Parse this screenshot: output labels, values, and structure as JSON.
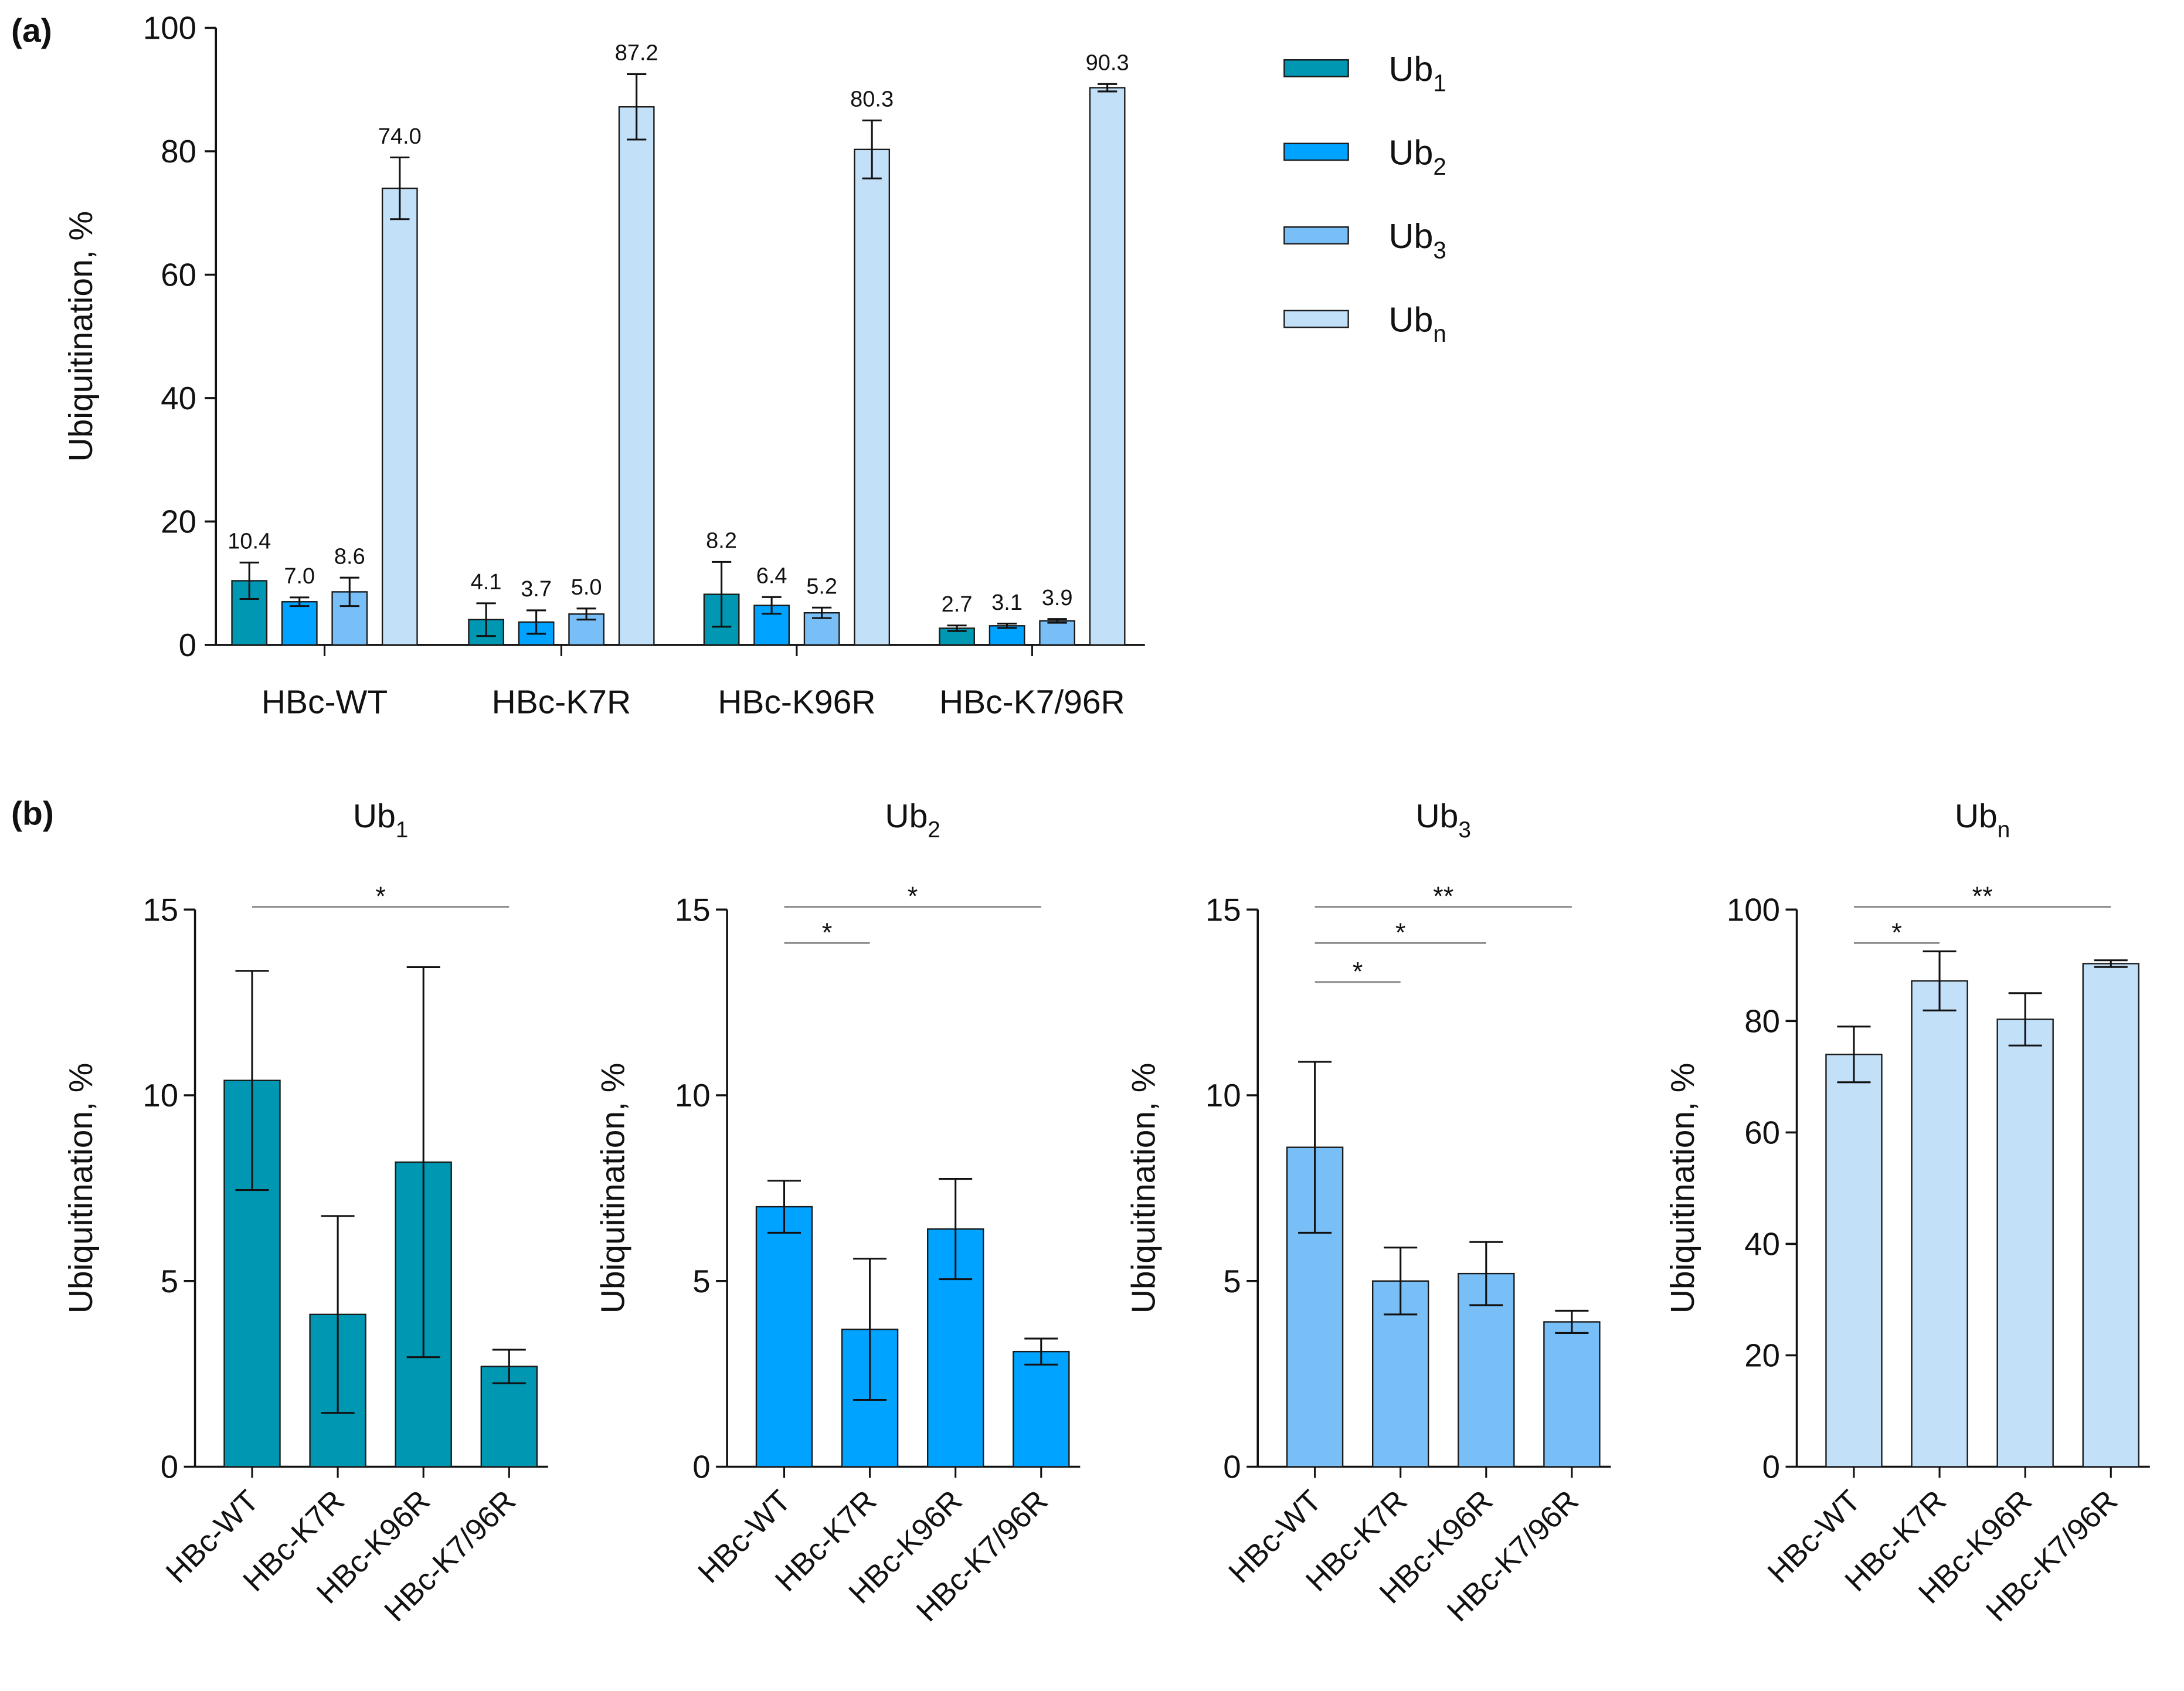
{
  "panel_labels": {
    "a": "(a)",
    "b": "(b)"
  },
  "colors": {
    "Ub1": "#0097b2",
    "Ub2": "#00a3ff",
    "Ub3": "#78bef7",
    "Ubn": "#c3e0f9",
    "stroke": "#1a1a1a",
    "bracket": "#888888"
  },
  "chart_data": [
    {
      "type": "bar",
      "panel": "a",
      "title": "",
      "ylabel": "Ubiquitination, %",
      "xlabel": "",
      "ylim": [
        0,
        100
      ],
      "yticks": [
        0,
        20,
        40,
        60,
        80,
        100
      ],
      "categories": [
        "HBc-WT",
        "HBc-K7R",
        "HBc-K96R",
        "HBc-K7/96R"
      ],
      "legend": {
        "placement": "right",
        "entries": [
          {
            "base": "Ub",
            "sub": "1",
            "key": "Ub1"
          },
          {
            "base": "Ub",
            "sub": "2",
            "key": "Ub2"
          },
          {
            "base": "Ub",
            "sub": "3",
            "key": "Ub3"
          },
          {
            "base": "Ub",
            "sub": "n",
            "key": "Ubn"
          }
        ]
      },
      "series": [
        {
          "name": "Ub1",
          "values": [
            10.4,
            4.1,
            8.2,
            2.7
          ],
          "errors": [
            2.95,
            2.65,
            5.25,
            0.45
          ],
          "labels": [
            "10.4",
            "4.1",
            "8.2",
            "2.7"
          ]
        },
        {
          "name": "Ub2",
          "values": [
            7.0,
            3.7,
            6.4,
            3.1
          ],
          "errors": [
            0.7,
            1.9,
            1.35,
            0.35
          ],
          "labels": [
            "7.0",
            "3.7",
            "6.4",
            "3.1"
          ]
        },
        {
          "name": "Ub3",
          "values": [
            8.6,
            5.0,
            5.2,
            3.9
          ],
          "errors": [
            2.3,
            0.9,
            0.85,
            0.3
          ],
          "labels": [
            "8.6",
            "5.0",
            "5.2",
            "3.9"
          ]
        },
        {
          "name": "Ubn",
          "values": [
            74.0,
            87.2,
            80.3,
            90.3
          ],
          "errors": [
            5.0,
            5.3,
            4.7,
            0.6
          ],
          "labels": [
            "74.0",
            "87.2",
            "80.3",
            "90.3"
          ]
        }
      ]
    },
    {
      "type": "bar",
      "panel": "b",
      "title": {
        "base": "Ub",
        "sub": "1"
      },
      "key": "Ub1",
      "ylabel": "Ubiquitination, %",
      "ylim": [
        0,
        15
      ],
      "yticks": [
        0,
        5,
        10,
        15
      ],
      "categories": [
        "HBc-WT",
        "HBc-K7R",
        "HBc-K96R",
        "HBc-K7/96R"
      ],
      "values": [
        10.4,
        4.1,
        8.2,
        2.7
      ],
      "errors": [
        2.95,
        2.65,
        5.25,
        0.45
      ],
      "significance": [
        {
          "from": 0,
          "to": 3,
          "label": "*"
        }
      ]
    },
    {
      "type": "bar",
      "panel": "b",
      "title": {
        "base": "Ub",
        "sub": "2"
      },
      "key": "Ub2",
      "ylabel": "Ubiquitination, %",
      "ylim": [
        0,
        15
      ],
      "yticks": [
        0,
        5,
        10,
        15
      ],
      "categories": [
        "HBc-WT",
        "HBc-K7R",
        "HBc-K96R",
        "HBc-K7/96R"
      ],
      "values": [
        7.0,
        3.7,
        6.4,
        3.1
      ],
      "errors": [
        0.7,
        1.9,
        1.35,
        0.35
      ],
      "significance": [
        {
          "from": 0,
          "to": 3,
          "label": "*"
        },
        {
          "from": 0,
          "to": 1,
          "label": "*"
        }
      ]
    },
    {
      "type": "bar",
      "panel": "b",
      "title": {
        "base": "Ub",
        "sub": "3"
      },
      "key": "Ub3",
      "ylabel": "Ubiquitination, %",
      "ylim": [
        0,
        15
      ],
      "yticks": [
        0,
        5,
        10,
        15
      ],
      "categories": [
        "HBc-WT",
        "HBc-K7R",
        "HBc-K96R",
        "HBc-K7/96R"
      ],
      "values": [
        8.6,
        5.0,
        5.2,
        3.9
      ],
      "errors": [
        2.3,
        0.9,
        0.85,
        0.3
      ],
      "significance": [
        {
          "from": 0,
          "to": 3,
          "label": "**"
        },
        {
          "from": 0,
          "to": 2,
          "label": "*"
        },
        {
          "from": 0,
          "to": 1,
          "label": "*"
        }
      ]
    },
    {
      "type": "bar",
      "panel": "b",
      "title": {
        "base": "Ub",
        "sub": "n"
      },
      "key": "Ubn",
      "ylabel": "Ubiquitination, %",
      "ylim": [
        0,
        100
      ],
      "yticks": [
        0,
        20,
        40,
        60,
        80,
        100
      ],
      "categories": [
        "HBc-WT",
        "HBc-K7R",
        "HBc-K96R",
        "HBc-K7/96R"
      ],
      "values": [
        74.0,
        87.2,
        80.3,
        90.3
      ],
      "errors": [
        5.0,
        5.3,
        4.7,
        0.6
      ],
      "significance": [
        {
          "from": 0,
          "to": 3,
          "label": "**"
        },
        {
          "from": 0,
          "to": 1,
          "label": "*"
        }
      ]
    }
  ]
}
